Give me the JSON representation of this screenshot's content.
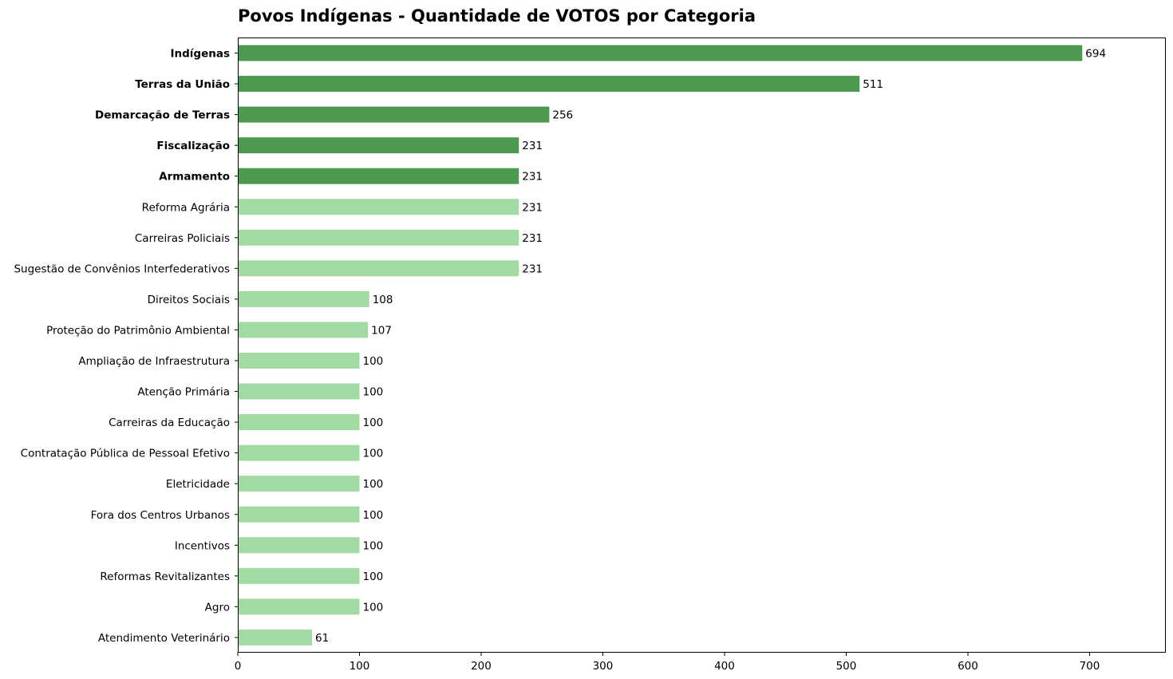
{
  "chart_data": {
    "type": "bar",
    "orientation": "horizontal",
    "title": "Povos Indígenas - Quantidade de VOTOS por Categoria",
    "xlabel": "",
    "ylabel": "",
    "xlim": [
      0,
      762
    ],
    "xticks": [
      0,
      100,
      200,
      300,
      400,
      500,
      600,
      700
    ],
    "grid": false,
    "categories": [
      "Indígenas",
      "Terras da União",
      "Demarcação de Terras",
      "Fiscalização",
      "Armamento",
      "Reforma Agrária",
      "Carreiras Policiais",
      "Sugestão de Convênios Interfederativos",
      "Direitos Sociais",
      "Proteção do Patrimônio Ambiental",
      "Ampliação de Infraestrutura",
      "Atenção Primária",
      "Carreiras da Educação",
      "Contratação Pública de Pessoal Efetivo",
      "Eletricidade",
      "Fora dos Centros Urbanos",
      "Incentivos",
      "Reformas Revitalizantes",
      "Agro",
      "Atendimento Veterinário"
    ],
    "values": [
      694,
      511,
      256,
      231,
      231,
      231,
      231,
      231,
      108,
      107,
      100,
      100,
      100,
      100,
      100,
      100,
      100,
      100,
      100,
      61
    ],
    "highlight_top_n": 5,
    "colors": {
      "highlight": "#4e9951",
      "normal": "#a3d9a3"
    }
  }
}
